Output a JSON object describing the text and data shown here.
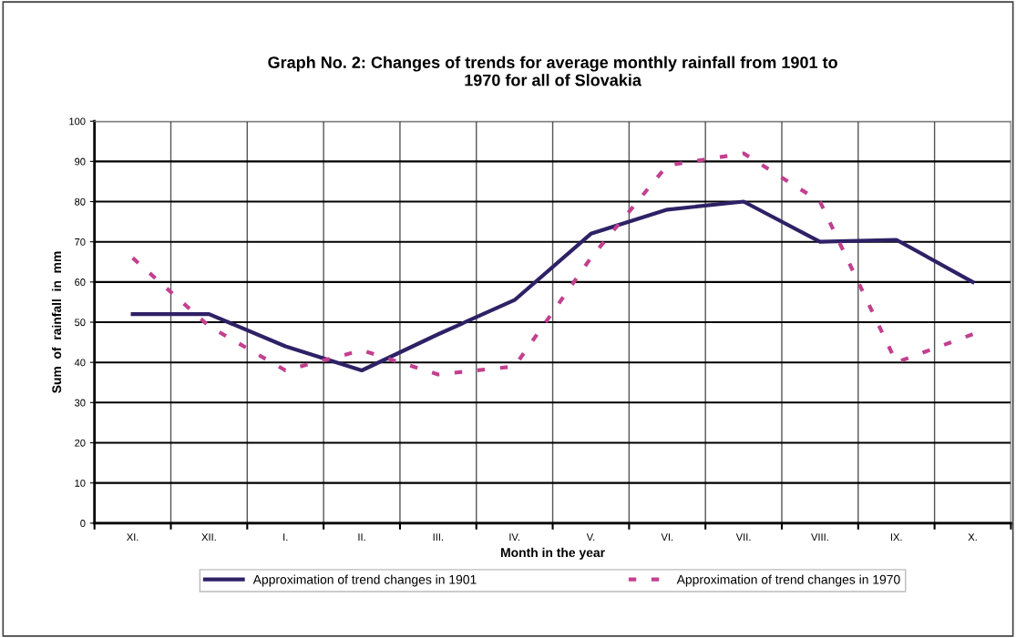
{
  "chart_data": {
    "type": "line",
    "title": "Graph No. 2: Changes of trends for average monthly rainfall from 1901 to\n1970 for all of Slovakia",
    "xlabel": "Month in the year",
    "ylabel": "Sum  of  rainfall  in  mm",
    "categories": [
      "XI.",
      "XII.",
      "I.",
      "II.",
      "III.",
      "IV.",
      "V.",
      "VI.",
      "VII.",
      "VIII.",
      "IX.",
      "X."
    ],
    "series": [
      {
        "name": "Approximation of trend changes in 1901",
        "color": "#2e2166",
        "line_style": "solid",
        "values": [
          52,
          52,
          44,
          38,
          47,
          55.5,
          72,
          78,
          80,
          70,
          70.5,
          60
        ]
      },
      {
        "name": "Approximation of trend changes in 1970",
        "color": "#c2408f",
        "line_style": "dashed",
        "values": [
          66,
          49,
          38,
          43,
          37,
          39,
          66,
          89,
          92,
          80,
          40,
          47
        ]
      }
    ],
    "ylim": [
      0,
      100
    ],
    "yticks": [
      0,
      10,
      20,
      30,
      40,
      50,
      60,
      70,
      80,
      90,
      100
    ],
    "grid": true,
    "legend": "bottom",
    "marker": "none"
  }
}
